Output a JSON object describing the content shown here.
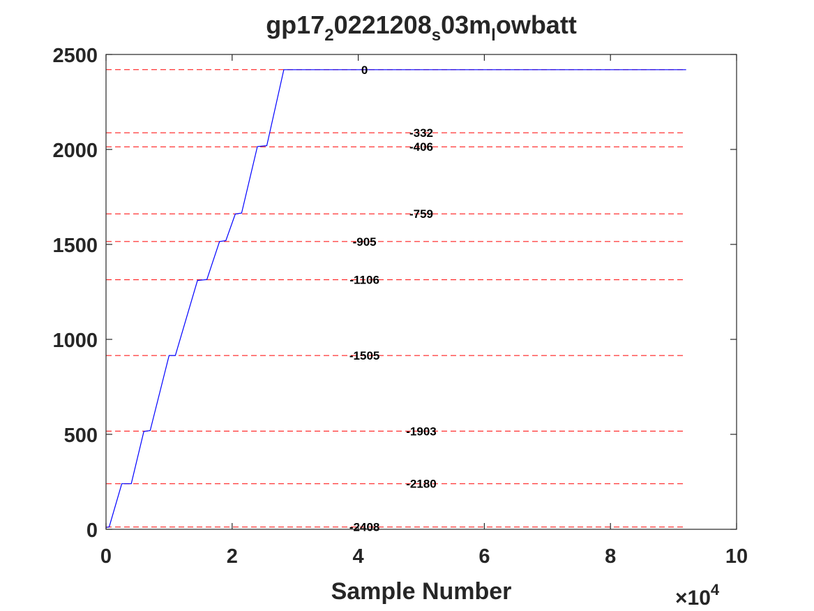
{
  "chart_data": {
    "type": "line",
    "title_parts": [
      {
        "text": "gp17",
        "sub": false
      },
      {
        "text": "2",
        "sub": true
      },
      {
        "text": "0221208",
        "sub": false
      },
      {
        "text": "s",
        "sub": true
      },
      {
        "text": "03m",
        "sub": false
      },
      {
        "text": "l",
        "sub": true
      },
      {
        "text": "owbatt",
        "sub": false
      }
    ],
    "xlabel": "Sample Number",
    "ylabel": "",
    "x_multiplier": {
      "base": "10",
      "exponent": "4"
    },
    "xlim": [
      0,
      10
    ],
    "ylim": [
      0,
      2500
    ],
    "x_ticks": [
      0,
      2,
      4,
      6,
      8,
      10
    ],
    "y_ticks": [
      0,
      500,
      1000,
      1500,
      2000,
      2500
    ],
    "grid": false,
    "series": [
      {
        "color": "#0000ff",
        "x": [
          0,
          0.05,
          0.25,
          0.4,
          0.6,
          0.7,
          1.0,
          1.1,
          1.45,
          1.6,
          1.8,
          1.9,
          2.05,
          2.15,
          2.4,
          2.55,
          2.82,
          9.2
        ],
        "y": [
          10,
          12,
          240,
          240,
          515,
          520,
          915,
          915,
          1310,
          1315,
          1515,
          1520,
          1660,
          1665,
          2015,
          2020,
          2420,
          2420
        ]
      }
    ],
    "reference_lines": {
      "color": "#ff0000",
      "style": "dashed",
      "x_end": 9.2,
      "lines": [
        {
          "y": 2420,
          "label": "0",
          "label_x": 4.1
        },
        {
          "y": 2088,
          "label": "-332",
          "label_x": 5.0
        },
        {
          "y": 2014,
          "label": "-406",
          "label_x": 5.0
        },
        {
          "y": 1661,
          "label": "-759",
          "label_x": 5.0
        },
        {
          "y": 1515,
          "label": "-905",
          "label_x": 4.1
        },
        {
          "y": 1314,
          "label": "-1106",
          "label_x": 4.1
        },
        {
          "y": 915,
          "label": "-1505",
          "label_x": 4.1
        },
        {
          "y": 517,
          "label": "-1903",
          "label_x": 5.0
        },
        {
          "y": 240,
          "label": "-2180",
          "label_x": 5.0
        },
        {
          "y": 12,
          "label": "-2408",
          "label_x": 4.1
        }
      ]
    },
    "colors": {
      "axis": "#262626",
      "series": "#0000ff",
      "reference": "#ff0000",
      "reference_text": "#000000"
    }
  }
}
